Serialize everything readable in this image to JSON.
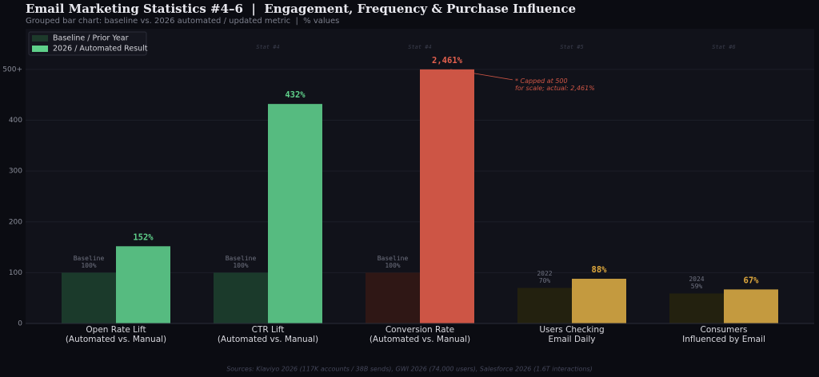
{
  "chart_data": {
    "type": "bar",
    "title": "Email Marketing Statistics #4–6  |  Engagement, Frequency & Purchase Influence",
    "subtitle": "Grouped bar chart: baseline vs. 2026 automated / updated metric  |  % values",
    "source": "Sources: Klaviyo 2026 (117K accounts / 38B sends), GWI 2026 (74,000 users), Salesforce 2026 (1.6T interactions)",
    "categories": [
      [
        "Open Rate Lift",
        "(Automated vs. Manual)"
      ],
      [
        "CTR Lift",
        "(Automated vs. Manual)"
      ],
      [
        "Conversion Rate",
        "(Automated vs. Manual)"
      ],
      [
        "Users Checking",
        "Email Daily"
      ],
      [
        "Consumers",
        "Influenced by Email"
      ]
    ],
    "stat_labels": [
      null,
      "Stat #4",
      "Stat #4",
      "Stat #5",
      "Stat #6"
    ],
    "series": [
      {
        "name": "Baseline / Prior Year",
        "color": "#1d3a2b",
        "colors": [
          "#1b3a2b",
          "#1b3a2b",
          "#2f1715",
          "#23210f",
          "#23210f"
        ],
        "values": [
          100,
          100,
          100,
          70,
          59
        ],
        "period_labels": [
          "Baseline",
          "Baseline",
          "Baseline",
          "2022",
          "2024"
        ],
        "value_labels": [
          "100%",
          "100%",
          "100%",
          "70%",
          "59%"
        ]
      },
      {
        "name": "2026 / Automated Result",
        "color": "#5fd08a",
        "colors": [
          "#56bb80",
          "#56bb80",
          "#cd5545",
          "#c49a3f",
          "#c49a3f"
        ],
        "label_colors": [
          "#5fd08a",
          "#5fd08a",
          "#e4604e",
          "#e0a93d",
          "#e0a93d"
        ],
        "values": [
          152,
          432,
          2461,
          88,
          67
        ],
        "value_labels": [
          "152%",
          "432%",
          "2,461%",
          "88%",
          "67%"
        ]
      }
    ],
    "annotation": [
      "* Capped at 500",
      "for scale; actual: 2,461%"
    ],
    "ylim": [
      0,
      580
    ],
    "yticks": [
      0,
      100,
      200,
      300,
      400,
      {
        "value": 500,
        "label": "500+"
      }
    ],
    "grid": true,
    "legend": "upper left"
  }
}
